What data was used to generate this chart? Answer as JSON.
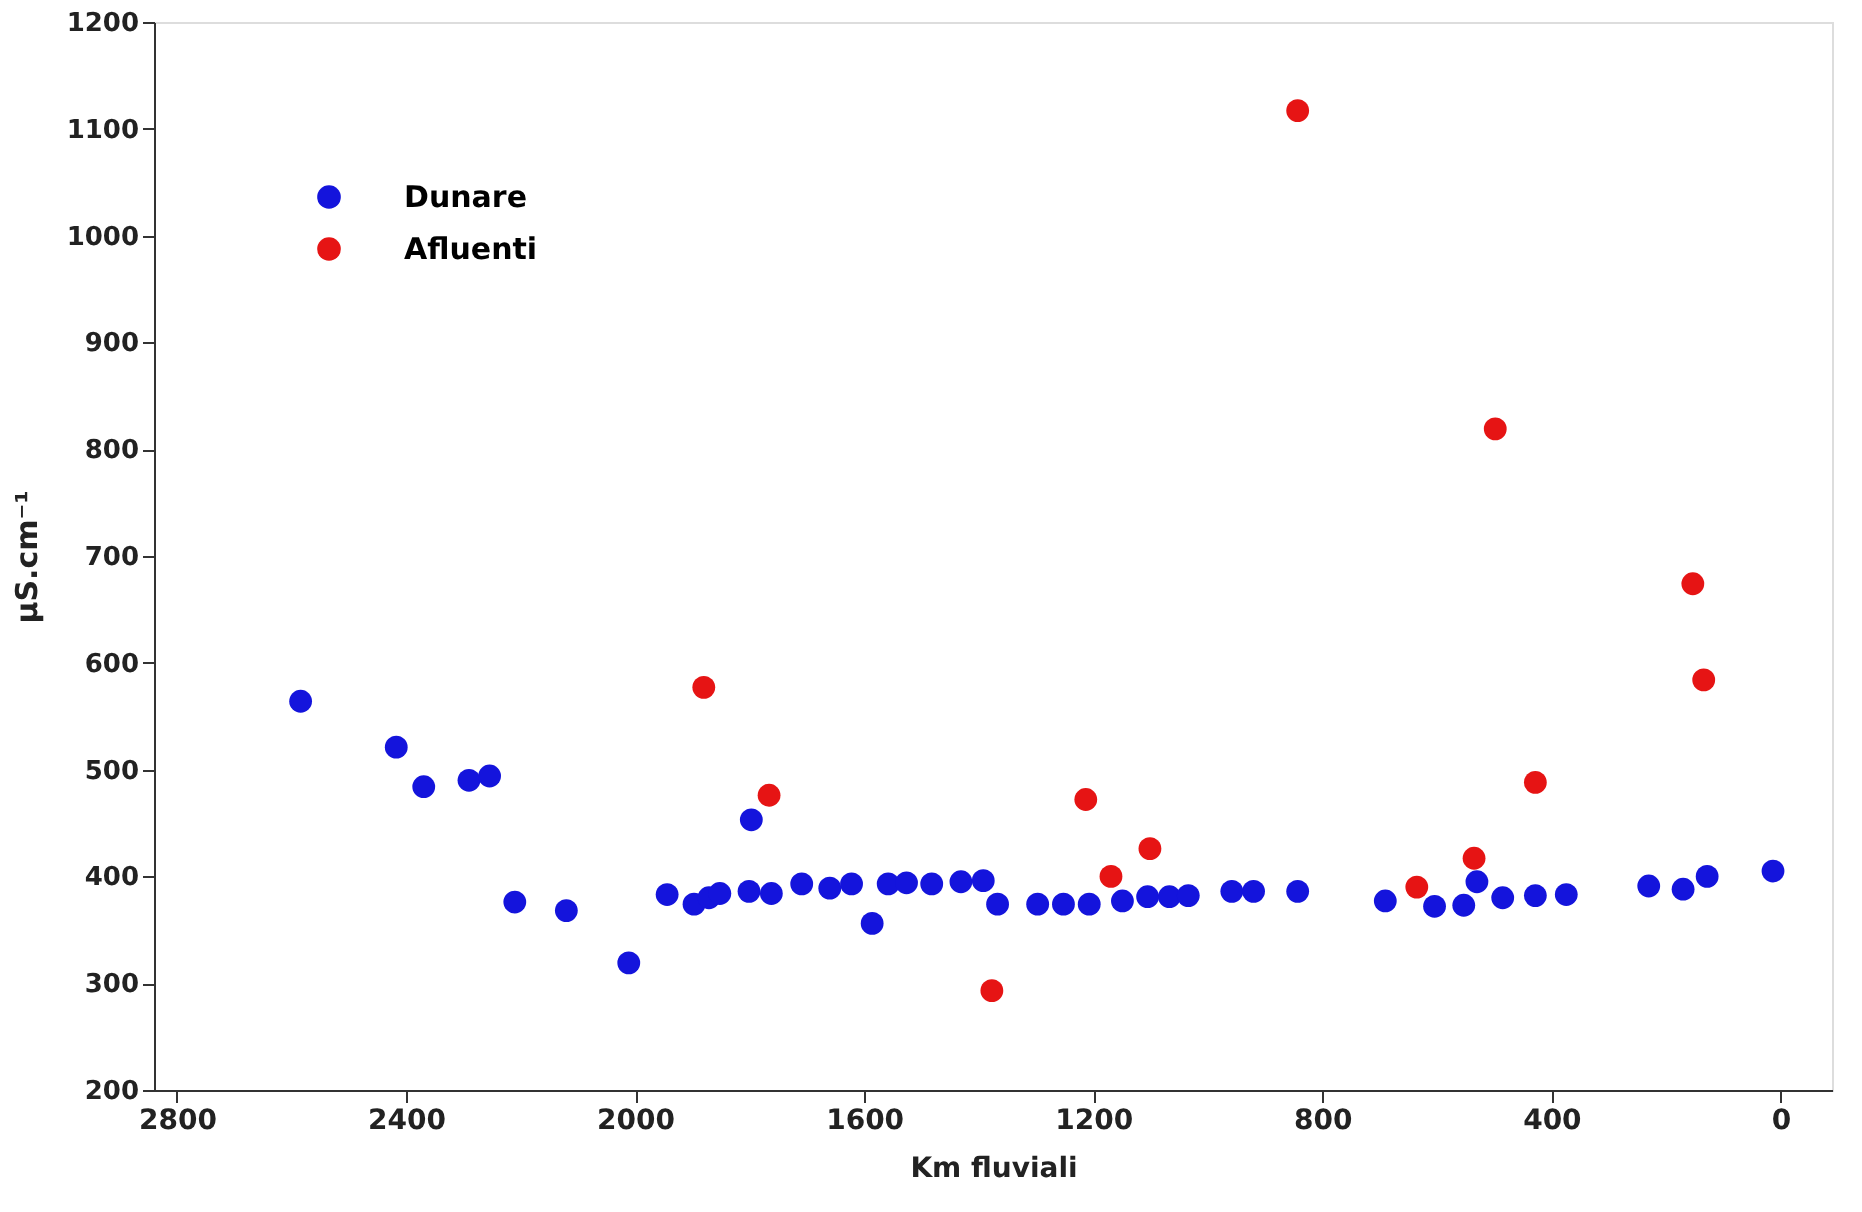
{
  "chart_data": {
    "type": "scatter",
    "xlabel": "Km fluviali",
    "ylabel": "μS.cm⁻¹",
    "xlim": [
      2840,
      -90
    ],
    "xticks": [
      2800,
      2400,
      2000,
      1600,
      1200,
      800,
      400,
      0
    ],
    "ylim": [
      200,
      1200
    ],
    "yticks": [
      200,
      300,
      400,
      500,
      600,
      700,
      800,
      900,
      1000,
      1100,
      1200
    ],
    "grid": false,
    "legend": "top left",
    "marker": "circle",
    "series": [
      {
        "name": "Dunare",
        "color": "#1414dc",
        "x": [
          2584,
          2417,
          2369,
          2290,
          2254,
          2210,
          2120,
          2011,
          1944,
          1897,
          1871,
          1852,
          1801,
          1762,
          1797,
          1709,
          1660,
          1622,
          1586,
          1558,
          1526,
          1482,
          1431,
          1392,
          1367,
          1297,
          1252,
          1207,
          1149,
          1105,
          1067,
          1034,
          958,
          920,
          843,
          690,
          604,
          553,
          530,
          485,
          428,
          374,
          230,
          170,
          128,
          13
        ],
        "values": [
          564,
          521,
          484,
          490,
          494,
          376,
          368,
          319,
          383,
          374,
          380,
          384,
          386,
          384,
          453,
          393,
          389,
          393,
          356,
          393,
          394,
          393,
          395,
          396,
          374,
          374,
          374,
          374,
          377,
          381,
          381,
          382,
          386,
          386,
          386,
          377,
          372,
          373,
          395,
          380,
          382,
          383,
          391,
          388,
          400,
          405
        ]
      },
      {
        "name": "Afluenti",
        "color": "#e61414",
        "x": [
          1880,
          1766,
          1377,
          1213,
          1169,
          1101,
          843,
          635,
          535,
          498,
          428,
          153,
          134
        ],
        "values": [
          577,
          476,
          293,
          472,
          400,
          426,
          1117,
          390,
          417,
          819,
          488,
          674,
          584
        ]
      }
    ]
  }
}
